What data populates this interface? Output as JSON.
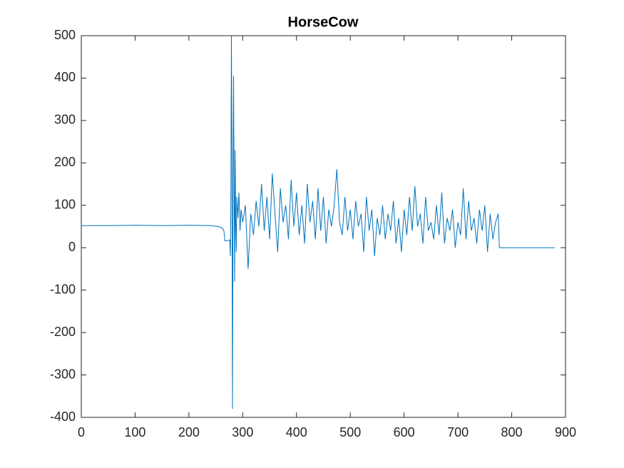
{
  "chart_data": {
    "type": "line",
    "title": "HorseCow",
    "color": "#0072bd",
    "x": [
      0,
      50,
      100,
      150,
      200,
      240,
      255,
      262,
      265,
      267,
      272,
      276,
      277,
      278,
      279,
      280,
      281,
      282,
      283,
      284,
      285,
      286,
      287,
      288,
      289,
      291,
      293,
      295,
      297,
      300,
      305,
      310,
      315,
      320,
      325,
      330,
      335,
      340,
      345,
      350,
      355,
      360,
      365,
      370,
      375,
      380,
      385,
      390,
      395,
      400,
      405,
      410,
      415,
      420,
      425,
      430,
      435,
      440,
      445,
      450,
      455,
      460,
      465,
      470,
      475,
      480,
      485,
      490,
      495,
      500,
      505,
      510,
      515,
      520,
      525,
      530,
      535,
      540,
      545,
      550,
      555,
      560,
      565,
      570,
      575,
      580,
      585,
      590,
      595,
      600,
      605,
      610,
      615,
      620,
      625,
      630,
      635,
      640,
      645,
      650,
      655,
      660,
      665,
      670,
      675,
      680,
      685,
      690,
      695,
      700,
      705,
      710,
      715,
      720,
      725,
      730,
      735,
      740,
      745,
      750,
      755,
      760,
      765,
      770,
      775,
      777,
      880
    ],
    "values": [
      52,
      52,
      53,
      52,
      53,
      52,
      50,
      46,
      40,
      16,
      17,
      18,
      -20,
      100,
      500,
      200,
      -380,
      100,
      405,
      150,
      -80,
      230,
      50,
      -10,
      120,
      70,
      130,
      40,
      90,
      60,
      100,
      -50,
      80,
      30,
      110,
      50,
      150,
      40,
      120,
      20,
      175,
      80,
      -10,
      140,
      60,
      100,
      20,
      160,
      50,
      130,
      30,
      100,
      10,
      150,
      60,
      110,
      20,
      140,
      40,
      120,
      10,
      90,
      50,
      100,
      185,
      60,
      30,
      120,
      40,
      90,
      20,
      110,
      50,
      80,
      -10,
      120,
      40,
      90,
      -20,
      70,
      30,
      100,
      20,
      80,
      40,
      110,
      10,
      70,
      -10,
      90,
      30,
      120,
      40,
      145,
      50,
      80,
      10,
      120,
      40,
      60,
      20,
      100,
      30,
      130,
      10,
      70,
      40,
      90,
      0,
      60,
      30,
      140,
      20,
      110,
      40,
      70,
      10,
      90,
      40,
      100,
      -10,
      80,
      20,
      60,
      80,
      0,
      0
    ],
    "xlim": [
      0,
      900
    ],
    "ylim": [
      -400,
      500
    ],
    "xticks": [
      0,
      100,
      200,
      300,
      400,
      500,
      600,
      700,
      800,
      900
    ],
    "yticks": [
      -400,
      -300,
      -200,
      -100,
      0,
      100,
      200,
      300,
      400,
      500
    ]
  }
}
